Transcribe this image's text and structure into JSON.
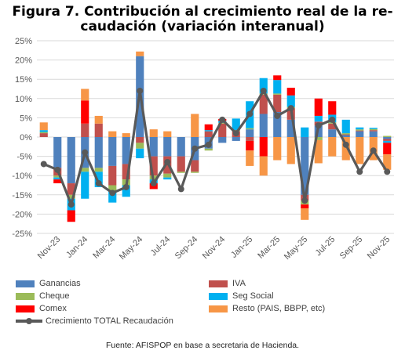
{
  "title_line1": "Figura 7.  Contribución al crecimiento real de la re-",
  "title_line2": "caudación (variación interanual)",
  "source": "Fuente: AFISPOP en base a secretaria de Hacienda.",
  "chart_data": {
    "type": "bar",
    "stacked": true,
    "ylim": [
      -25,
      25
    ],
    "y_ticks": [
      "25%",
      "20%",
      "15%",
      "10%",
      "5%",
      "0%",
      "-5%",
      "-10%",
      "-15%",
      "-20%",
      "-25%"
    ],
    "x_tick_labels": [
      "Nov-23",
      "Jan-24",
      "Mar-24",
      "May-24",
      "Jul-24",
      "Sep-24",
      "Nov-24",
      "Jan-25",
      "Mar-25",
      "May-25",
      "Jul-25",
      "Sep-25",
      "Nov-25"
    ],
    "categories": [
      "Oct-23",
      "Nov-23",
      "Dec-23",
      "Jan-24",
      "Feb-24",
      "Mar-24",
      "Apr-24",
      "May-24",
      "Jun-24",
      "Jul-24",
      "Aug-24",
      "Sep-24",
      "Oct-24",
      "Nov-24",
      "Dec-24",
      "Jan-25",
      "Feb-25",
      "Mar-25",
      "Apr-25",
      "May-25",
      "Jun-25",
      "Jul-25",
      "Aug-25",
      "Sep-25",
      "Oct-25",
      "Nov-25"
    ],
    "series": [
      {
        "name": "Ganancias",
        "color": "#4f81bd",
        "values": [
          0,
          -8,
          -12,
          -8,
          -8,
          -7.5,
          -7,
          21,
          -5,
          -5,
          -5,
          -6,
          -3,
          -1.5,
          -1,
          2,
          6,
          6.5,
          4.5,
          -15,
          3,
          2,
          0.5,
          1.5,
          1.5,
          -0.5
        ]
      },
      {
        "name": "IVA",
        "color": "#c0504d",
        "values": [
          1,
          -2,
          -3,
          3.5,
          3.5,
          -5,
          -4,
          -1.5,
          -5,
          -4.5,
          -4,
          -3,
          1.5,
          3.5,
          1.5,
          -1,
          5,
          4.5,
          3,
          -1.5,
          1,
          1.5,
          0.2,
          0.2,
          0.3,
          -0.5
        ]
      },
      {
        "name": "Cheque",
        "color": "#9bbb59",
        "values": [
          0.3,
          -0.5,
          -1,
          -1,
          -1,
          -1.5,
          -1.5,
          -1.5,
          -1,
          -1,
          -0.3,
          -0.3,
          -0.5,
          0.2,
          0.3,
          0.3,
          0.3,
          0.3,
          0.3,
          -1,
          -0.8,
          0.3,
          0.3,
          0.3,
          0.3,
          0.3
        ]
      },
      {
        "name": "Seg Social",
        "color": "#00b0f0",
        "values": [
          0.5,
          -0.5,
          -3,
          -7,
          -4,
          -3,
          -3,
          -2.5,
          -1,
          -0.5,
          0,
          0,
          0.3,
          0.5,
          3,
          7,
          4,
          3.5,
          3,
          2.5,
          1.5,
          2,
          3.5,
          0.5,
          0.3,
          -0.5
        ]
      },
      {
        "name": "Comex",
        "color": "#ff0000",
        "values": [
          0,
          -1,
          -3,
          6,
          0,
          0,
          0,
          0,
          -1.5,
          0,
          0,
          0,
          1.5,
          0.5,
          0,
          -2.5,
          -5,
          1.2,
          2,
          -1,
          4.5,
          3.5,
          0,
          0,
          0,
          -3
        ]
      },
      {
        "name": "Resto (PAIS, BBPP, etc)",
        "color": "#f79646",
        "values": [
          2,
          0,
          0,
          3,
          2,
          1.5,
          1,
          1.2,
          2,
          1.5,
          0,
          6,
          0,
          0,
          0,
          -4,
          -5,
          -6,
          -7,
          -3,
          -6,
          -5,
          -6,
          -7,
          -6,
          -4
        ]
      },
      {
        "name": "Crecimiento TOTAL Recaudación",
        "color": "#595959",
        "type": "line",
        "values": [
          -7,
          -8.5,
          -17.5,
          -4,
          -12,
          -14.5,
          -13,
          12,
          -12,
          -6.5,
          -13.5,
          -3,
          -2,
          4.5,
          1,
          6,
          12,
          5.5,
          7.5,
          -16.5,
          3,
          4.5,
          -2,
          -9,
          -3.5,
          -9
        ]
      }
    ],
    "grid": true,
    "legend_position": "bottom"
  }
}
